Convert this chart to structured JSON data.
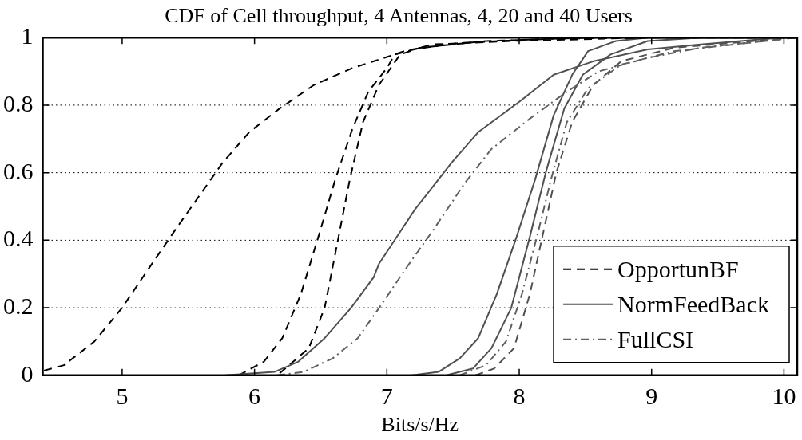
{
  "chart_data": {
    "type": "line",
    "title": "CDF of Cell throughput, 4 Antennas, 4, 20 and 40 Users",
    "xlabel": "Bits/s/Hz",
    "xlim": [
      4.4,
      10.1
    ],
    "xticks": [
      5,
      6,
      7,
      8,
      9,
      10
    ],
    "ylim": [
      0,
      1
    ],
    "yticks": [
      0,
      0.2,
      0.4,
      0.6,
      0.8,
      1
    ],
    "grid": "y",
    "legend": "bottom right",
    "marker": "none",
    "series": [
      {
        "name": "OpportunBF",
        "color": "#000000",
        "line_style": "dashed",
        "x": [
          4.41,
          4.56,
          4.79,
          5.0,
          5.19,
          5.4,
          5.58,
          5.76,
          5.96,
          6.19,
          6.45,
          6.74,
          7.06,
          7.15,
          7.55,
          8.16,
          9.0,
          10.1
        ],
        "values": [
          0.014,
          0.03,
          0.1,
          0.2,
          0.31,
          0.43,
          0.53,
          0.63,
          0.72,
          0.79,
          0.86,
          0.91,
          0.95,
          0.963,
          0.984,
          0.996,
          1,
          1
        ]
      },
      {
        "name": "NormFeedBack",
        "color": "#505050",
        "line_style": "solid",
        "x": [
          5.78,
          6.15,
          6.33,
          6.53,
          6.73,
          6.9,
          6.94,
          7.21,
          7.49,
          7.69,
          8.0,
          8.26,
          8.56,
          8.97,
          9.37,
          9.98
        ],
        "values": [
          0,
          0.01,
          0.04,
          0.11,
          0.2,
          0.29,
          0.33,
          0.49,
          0.63,
          0.72,
          0.81,
          0.89,
          0.93,
          0.965,
          0.98,
          1
        ]
      },
      {
        "name": "FullCSI",
        "color": "#606060",
        "line_style": "dashdot",
        "x": [
          6.17,
          6.37,
          6.59,
          6.78,
          6.96,
          7.15,
          7.35,
          7.59,
          7.79,
          8.08,
          8.36,
          8.6,
          8.97,
          9.37,
          9.98
        ],
        "values": [
          0,
          0.01,
          0.05,
          0.11,
          0.21,
          0.32,
          0.43,
          0.57,
          0.67,
          0.76,
          0.84,
          0.9,
          0.94,
          0.97,
          0.995
        ]
      },
      {
        "color": "#000000",
        "line_style": "dashed",
        "x": [
          5.88,
          6.07,
          6.21,
          6.35,
          6.49,
          6.61,
          6.74,
          6.86,
          7.0,
          7.06,
          7.35,
          7.96,
          8.97,
          10.1
        ],
        "values": [
          0,
          0.04,
          0.11,
          0.24,
          0.42,
          0.58,
          0.73,
          0.84,
          0.91,
          0.95,
          0.98,
          0.99,
          1,
          1
        ]
      },
      {
        "color": "#000000",
        "line_style": "dashed",
        "x": [
          6.19,
          6.41,
          6.53,
          6.63,
          6.72,
          6.82,
          6.94,
          7.1,
          7.25,
          7.75,
          8.56,
          10.1
        ],
        "values": [
          0.006,
          0.08,
          0.2,
          0.4,
          0.58,
          0.75,
          0.86,
          0.95,
          0.97,
          0.99,
          1,
          1
        ]
      },
      {
        "color": "#505050",
        "line_style": "solid",
        "x": [
          7.19,
          7.39,
          7.55,
          7.69,
          7.83,
          7.98,
          8.12,
          8.26,
          8.4,
          8.52,
          8.73,
          8.97,
          10.1
        ],
        "values": [
          0,
          0.01,
          0.05,
          0.11,
          0.24,
          0.41,
          0.58,
          0.77,
          0.89,
          0.96,
          0.99,
          1,
          1
        ]
      },
      {
        "color": "#505050",
        "line_style": "solid",
        "x": [
          7.45,
          7.65,
          7.79,
          7.94,
          8.08,
          8.2,
          8.34,
          8.48,
          8.69,
          8.97,
          9.37,
          10.1
        ],
        "values": [
          0,
          0.02,
          0.08,
          0.2,
          0.41,
          0.6,
          0.79,
          0.89,
          0.95,
          0.99,
          1,
          1
        ]
      },
      {
        "color": "#606060",
        "line_style": "dashdot",
        "x": [
          7.55,
          7.75,
          7.9,
          8.02,
          8.14,
          8.24,
          8.36,
          8.52,
          8.77,
          9.17,
          9.98
        ],
        "values": [
          0,
          0.03,
          0.1,
          0.24,
          0.42,
          0.58,
          0.75,
          0.85,
          0.92,
          0.96,
          0.995
        ]
      },
      {
        "color": "#505050",
        "line_style": "dashed",
        "x": [
          7.67,
          7.81,
          7.96,
          8.08,
          8.18,
          8.28,
          8.4,
          8.56,
          8.77,
          9.17,
          9.78,
          10.1
        ],
        "values": [
          0,
          0.02,
          0.08,
          0.24,
          0.42,
          0.6,
          0.75,
          0.86,
          0.93,
          0.97,
          0.99,
          1
        ]
      }
    ]
  }
}
